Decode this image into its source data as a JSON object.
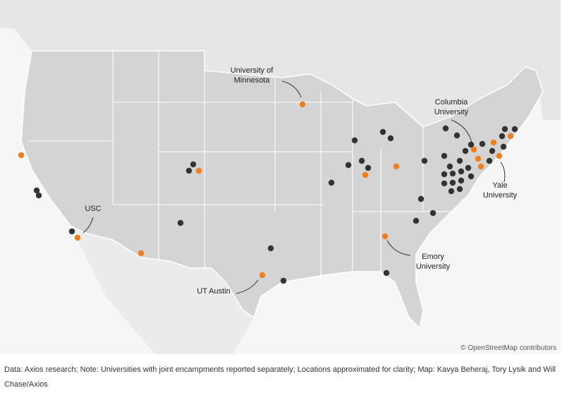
{
  "annotations": [
    {
      "lines": [
        "University of",
        "Minnesota"
      ]
    },
    {
      "lines": [
        "Columbia",
        "University"
      ]
    },
    {
      "lines": [
        "Yale",
        "University"
      ]
    },
    {
      "lines": [
        "USC"
      ]
    },
    {
      "lines": [
        "Emory",
        "University"
      ]
    },
    {
      "lines": [
        "UT Austin"
      ]
    }
  ],
  "attribution": "© OpenStreetMap contributors",
  "footer": "Data: Axios research; Note: Universities with joint encampments reported separately; Locations approximated for clarity; Map: Kavya Beheraj, Tory Lysik and Will Chase/Axios"
}
